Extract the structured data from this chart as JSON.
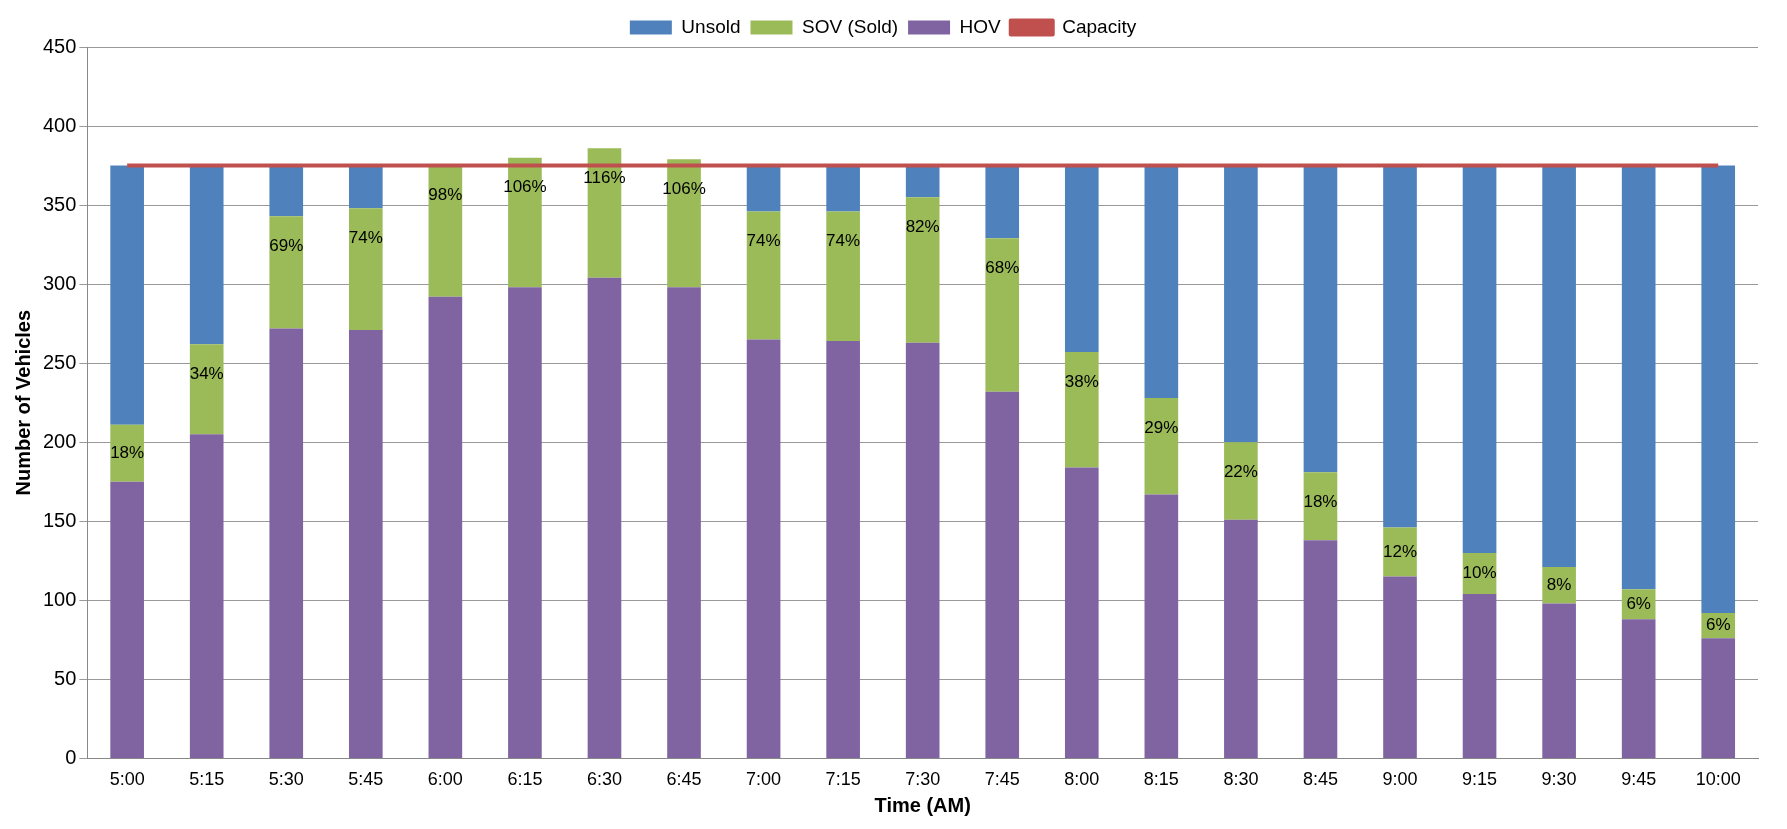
{
  "chart_data": {
    "type": "bar",
    "stacked": true,
    "xlabel": "Time (AM)",
    "ylabel": "Number of Vehicles",
    "categories": [
      "5:00",
      "5:15",
      "5:30",
      "5:45",
      "6:00",
      "6:15",
      "6:30",
      "6:45",
      "7:00",
      "7:15",
      "7:30",
      "7:45",
      "8:00",
      "8:15",
      "8:30",
      "8:45",
      "9:00",
      "9:15",
      "9:30",
      "9:45",
      "10:00"
    ],
    "series": [
      {
        "name": "HOV",
        "color": "#8064a2",
        "values": [
          175,
          205,
          272,
          271,
          292,
          298,
          304,
          298,
          265,
          264,
          263,
          232,
          184,
          167,
          151,
          138,
          115,
          104,
          98,
          88,
          76
        ]
      },
      {
        "name": "SOV (Sold)",
        "color": "#9bbb59",
        "values": [
          36,
          57,
          71,
          77,
          83,
          82,
          82,
          81,
          81,
          82,
          92,
          97,
          73,
          61,
          49,
          43,
          31,
          26,
          23,
          19,
          16
        ]
      },
      {
        "name": "Unsold",
        "color": "#4f81bd",
        "values": [
          164,
          113,
          32,
          27,
          0,
          0,
          0,
          0,
          29,
          29,
          20,
          46,
          118,
          147,
          175,
          194,
          229,
          245,
          254,
          268,
          283
        ]
      },
      {
        "name": "Capacity",
        "type": "line",
        "color": "#c0504d",
        "marker": "none",
        "values": [
          375,
          375,
          375,
          375,
          375,
          375,
          375,
          375,
          375,
          375,
          375,
          375,
          375,
          375,
          375,
          375,
          375,
          375,
          375,
          375,
          375
        ]
      }
    ],
    "annotations": [
      {
        "text": "18%",
        "x": "5:00",
        "y": 211
      },
      {
        "text": "34%",
        "x": "5:15",
        "y": 262
      },
      {
        "text": "69%",
        "x": "5:30",
        "y": 343
      },
      {
        "text": "74%",
        "x": "5:45",
        "y": 348
      },
      {
        "text": "98%",
        "x": "6:00",
        "y": 375
      },
      {
        "text": "106%",
        "x": "6:15",
        "y": 380
      },
      {
        "text": "116%",
        "x": "6:30",
        "y": 386
      },
      {
        "text": "106%",
        "x": "6:45",
        "y": 379
      },
      {
        "text": "74%",
        "x": "7:00",
        "y": 346
      },
      {
        "text": "74%",
        "x": "7:15",
        "y": 346
      },
      {
        "text": "82%",
        "x": "7:30",
        "y": 355
      },
      {
        "text": "68%",
        "x": "7:45",
        "y": 329
      },
      {
        "text": "38%",
        "x": "8:00",
        "y": 257
      },
      {
        "text": "29%",
        "x": "8:15",
        "y": 228
      },
      {
        "text": "22%",
        "x": "8:30",
        "y": 200
      },
      {
        "text": "18%",
        "x": "8:45",
        "y": 181
      },
      {
        "text": "12%",
        "x": "9:00",
        "y": 146
      },
      {
        "text": "10%",
        "x": "9:15",
        "y": 130
      },
      {
        "text": "8%",
        "x": "9:30",
        "y": 121
      },
      {
        "text": "6%",
        "x": "9:45",
        "y": 107
      },
      {
        "text": "6%",
        "x": "10:00",
        "y": 92
      }
    ],
    "ylim": [
      0,
      450
    ],
    "yticks": [
      0,
      50,
      100,
      150,
      200,
      250,
      300,
      350,
      400,
      450
    ],
    "grid": "y",
    "legend": "top"
  }
}
